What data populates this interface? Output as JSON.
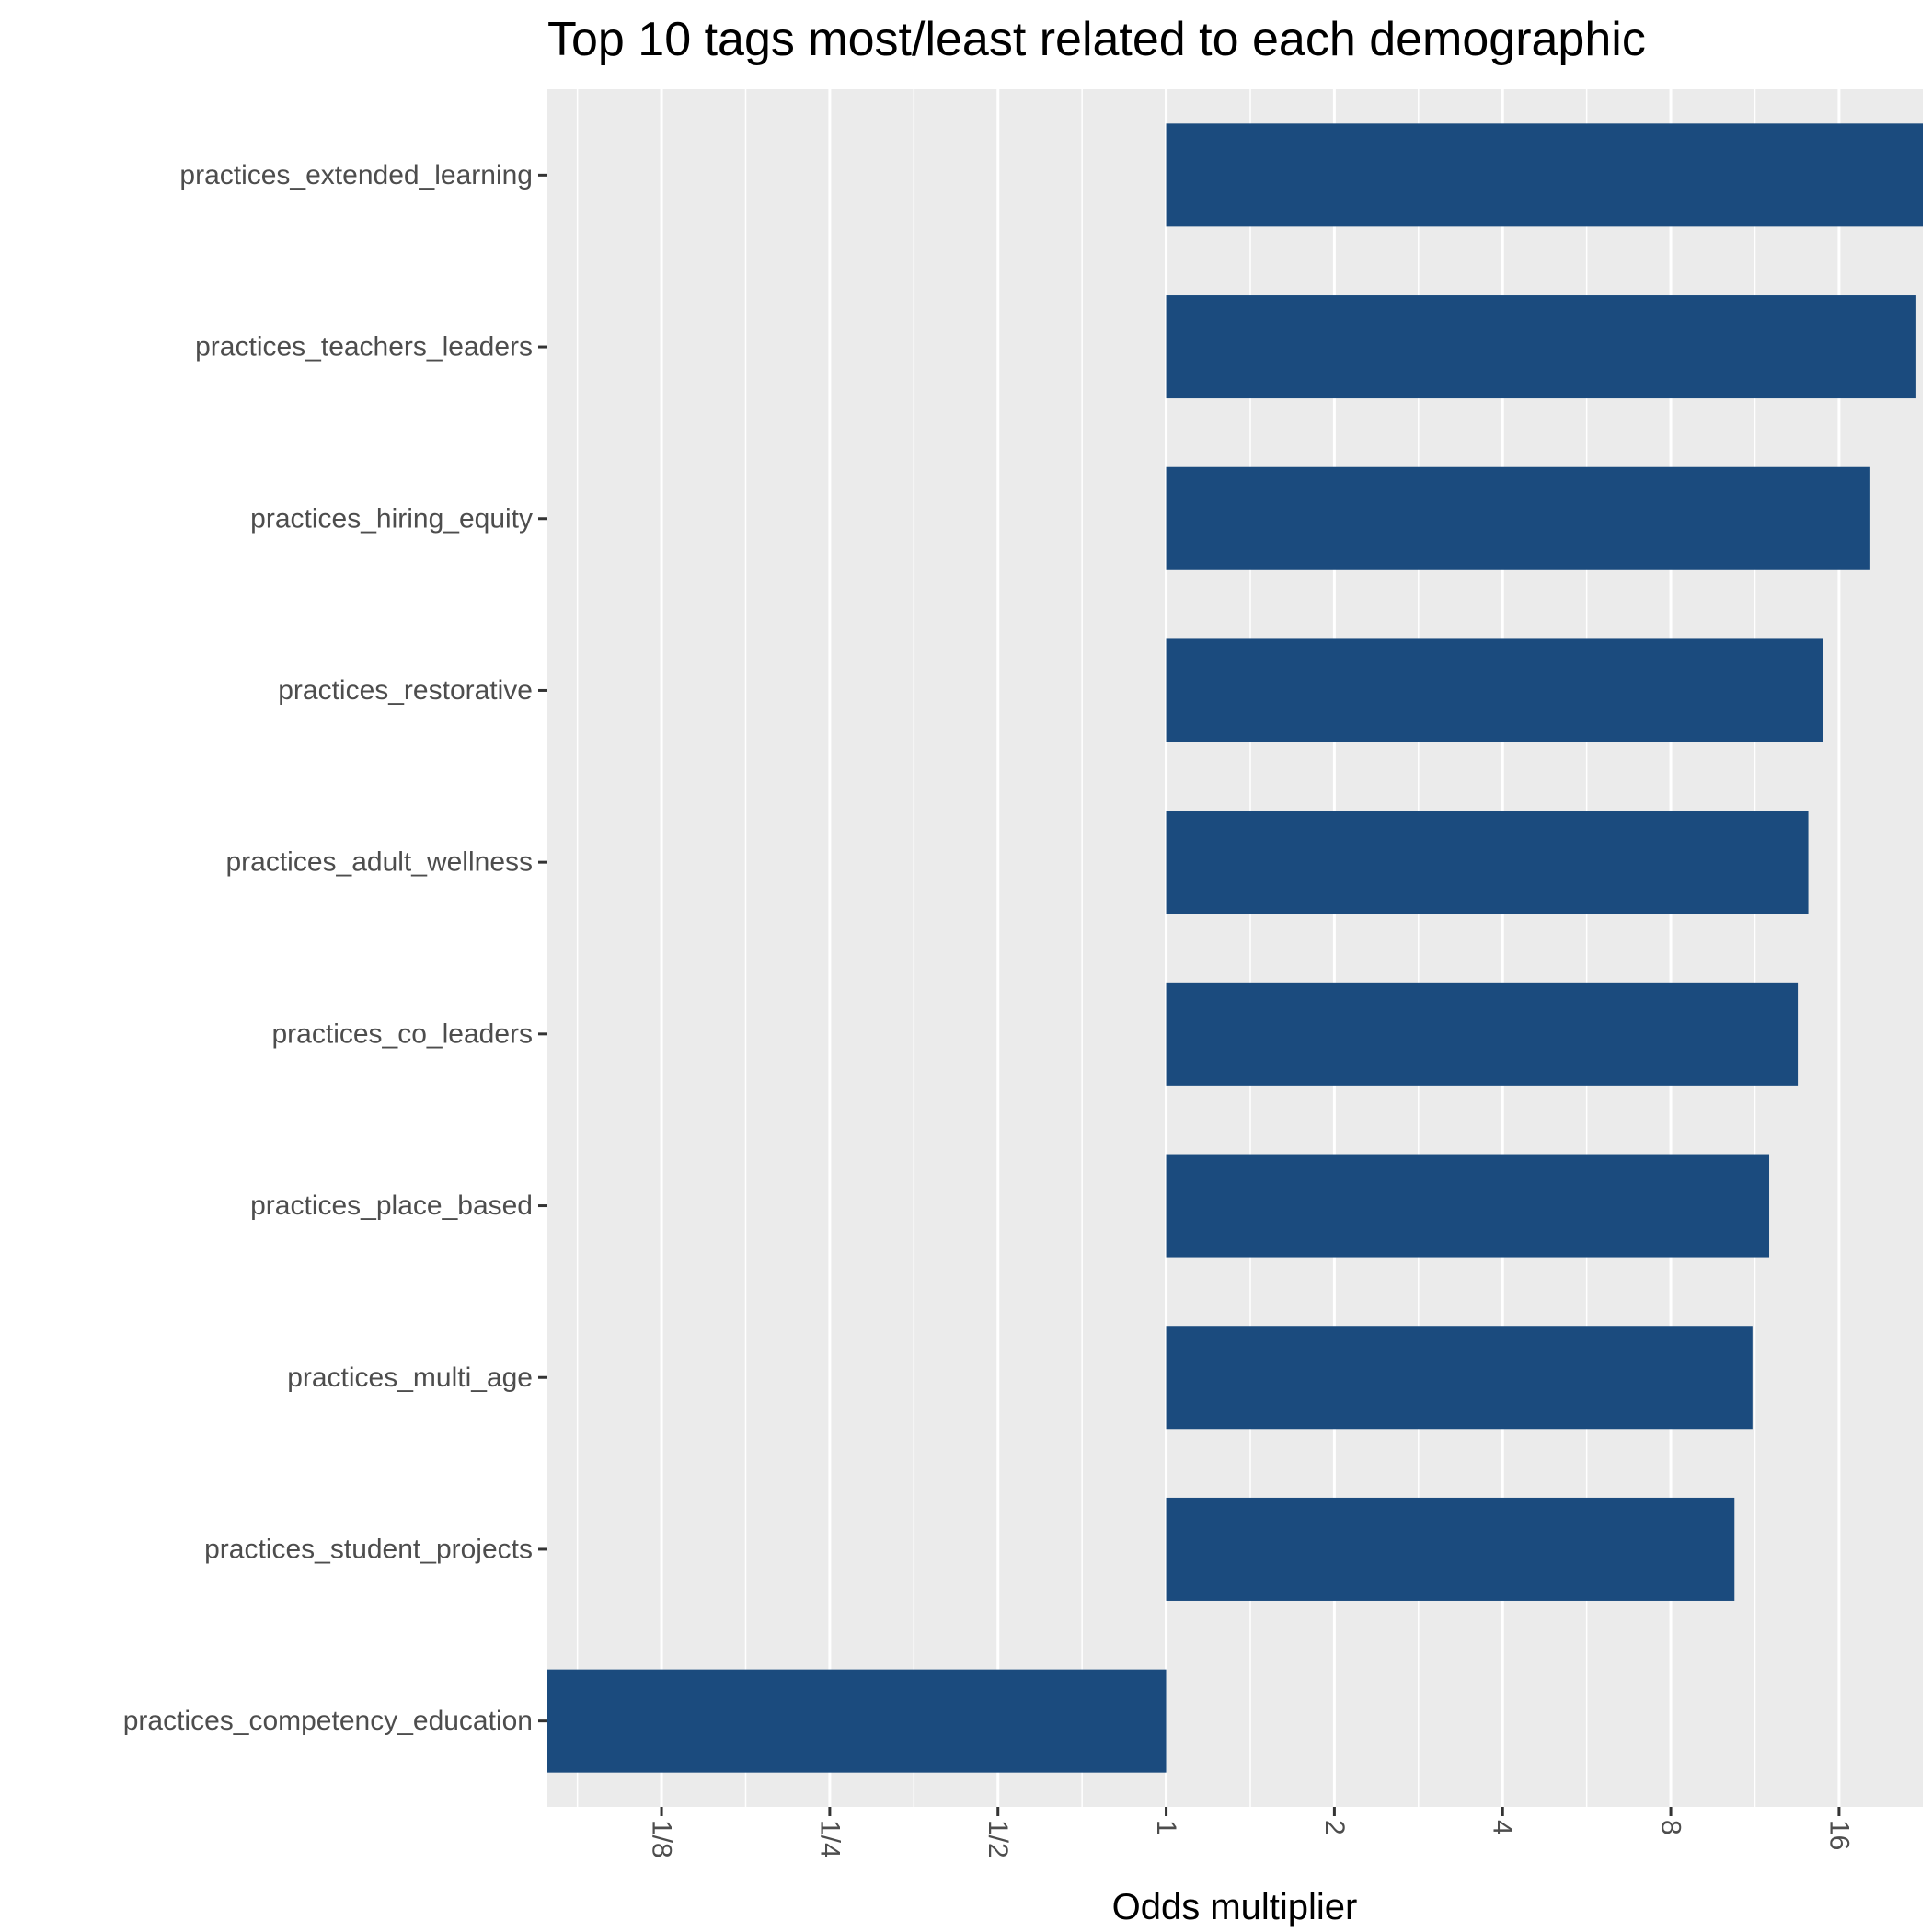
{
  "chart_data": {
    "type": "bar",
    "orientation": "horizontal",
    "title": "Top 10 tags most/least related to each demographic",
    "xlabel": "Odds multiplier",
    "ylabel": "",
    "x_scale": "log2",
    "xlim": [
      0.0781,
      22.6
    ],
    "x_ticks": [
      {
        "value": 0.125,
        "label": "1/8"
      },
      {
        "value": 0.25,
        "label": "1/4"
      },
      {
        "value": 0.5,
        "label": "1/2"
      },
      {
        "value": 1,
        "label": "1"
      },
      {
        "value": 2,
        "label": "2"
      },
      {
        "value": 4,
        "label": "4"
      },
      {
        "value": 8,
        "label": "8"
      },
      {
        "value": 16,
        "label": "16"
      }
    ],
    "bar_baseline": 1,
    "categories": [
      "practices_extended_learning",
      "practices_teachers_leaders",
      "practices_hiring_equity",
      "practices_restorative",
      "practices_adult_wellness",
      "practices_co_leaders",
      "practices_place_based",
      "practices_multi_age",
      "practices_student_projects",
      "practices_competency_education"
    ],
    "values": [
      22.6,
      22.0,
      18.2,
      15.0,
      14.1,
      13.5,
      12.0,
      11.2,
      10.4,
      0.0781
    ],
    "bar_color": "#1b4b7e",
    "panel_background": "#ebebeb",
    "grid": true,
    "legend": "none"
  }
}
